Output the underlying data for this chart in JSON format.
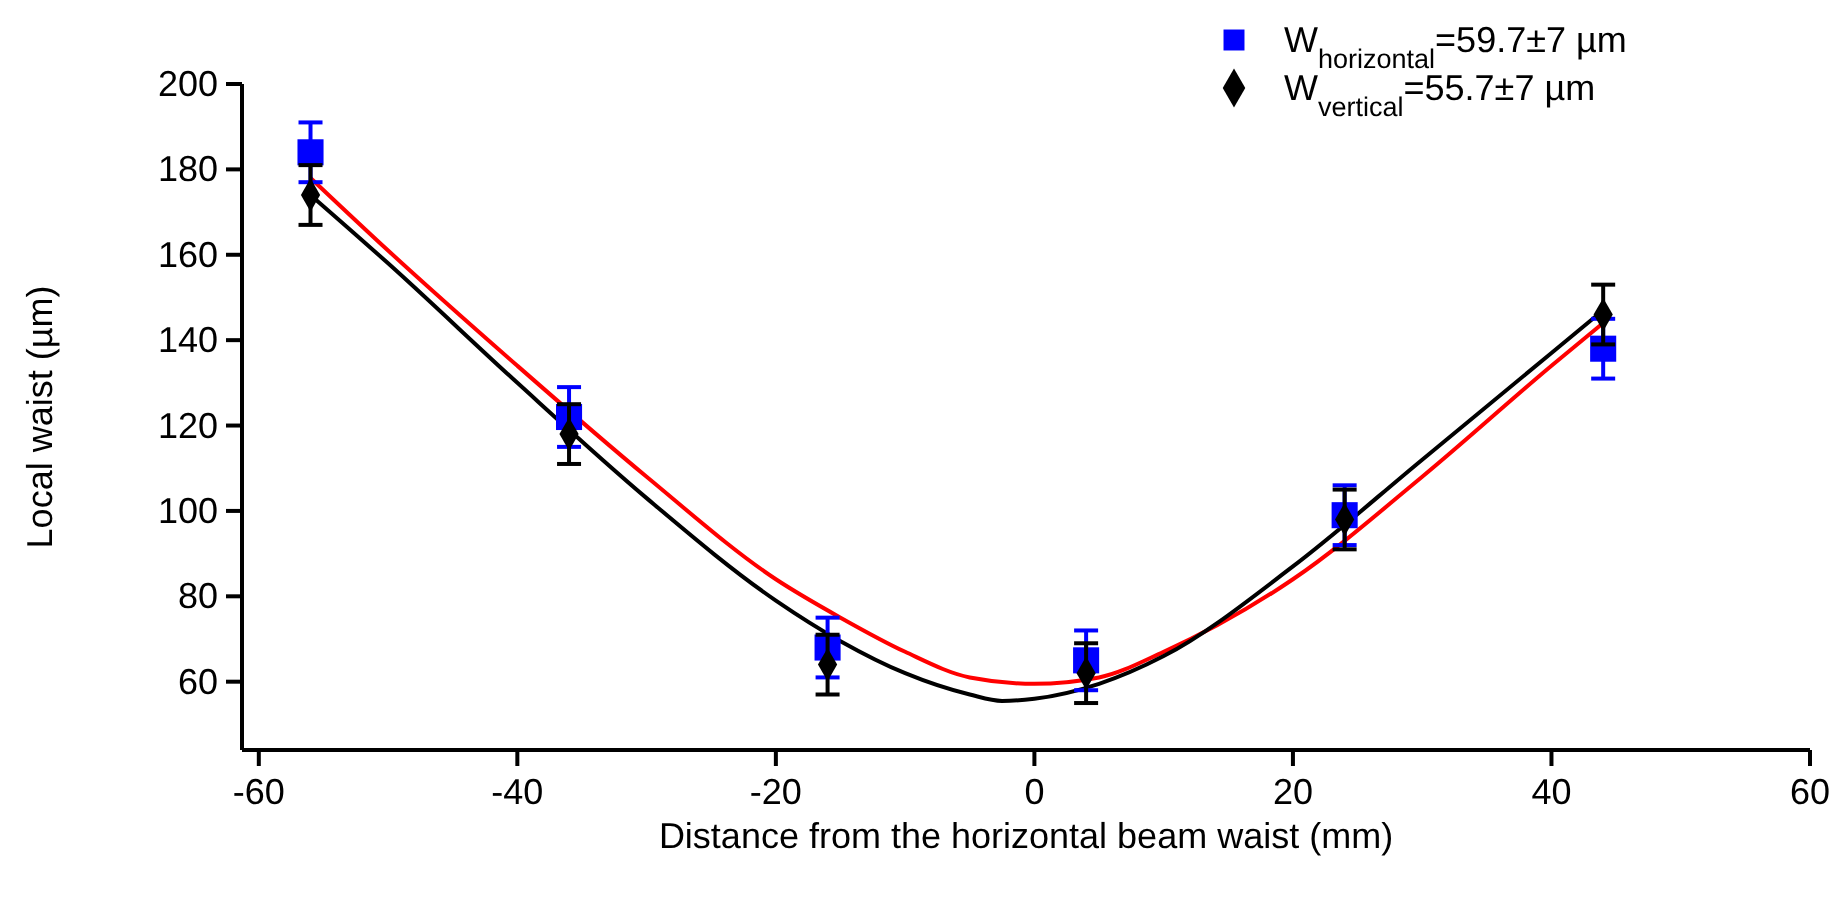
{
  "chart_data": {
    "type": "scatter",
    "xlabel": "Distance from the horizontal beam waist (mm)",
    "ylabel": "Local waist (µm)",
    "xlim": [
      -61.3,
      60
    ],
    "ylim": [
      44,
      200
    ],
    "xticks": [
      -60,
      -40,
      -20,
      0,
      20,
      40,
      60
    ],
    "yticks": [
      60,
      80,
      100,
      120,
      140,
      160,
      180,
      200
    ],
    "grid": false,
    "legend": "top right",
    "series": [
      {
        "name": "W$_{horizontal}$=59.7±7 µm",
        "color": "#0000ff",
        "marker": "square",
        "x": [
          -56,
          -36,
          -16,
          4,
          24,
          44
        ],
        "values": [
          184,
          122,
          68,
          65,
          99,
          138
        ],
        "errors": [
          7,
          7,
          7,
          7,
          7,
          7
        ]
      },
      {
        "name": "W$_{vertical}$=55.7±7 µm",
        "color": "#000000",
        "marker": "diamond",
        "x": [
          -56,
          -36,
          -16,
          4,
          24,
          44
        ],
        "values": [
          174,
          118,
          64,
          62,
          98,
          146
        ],
        "errors": [
          7,
          7,
          7,
          7,
          7,
          7
        ]
      },
      {
        "type": "line",
        "color": "#ff0000",
        "marker": "none",
        "x": [
          -56,
          -50,
          -40,
          -30,
          -20,
          -15,
          -10,
          -5,
          0,
          5,
          10,
          20,
          30,
          40,
          44
        ],
        "values": [
          178,
          161,
          134,
          108,
          84,
          75,
          67,
          61,
          59.5,
          61,
          67,
          84,
          108,
          134,
          144
        ]
      },
      {
        "type": "line",
        "color": "#000000",
        "marker": "none",
        "x": [
          -56,
          -50,
          -40,
          -30,
          -20,
          -15,
          -10,
          -5,
          -2.5,
          0,
          5,
          10,
          20,
          30,
          40,
          44
        ],
        "values": [
          174,
          158,
          130,
          103,
          79,
          69.5,
          62,
          57,
          55.5,
          56,
          59.5,
          66,
          87,
          112,
          137,
          147
        ]
      }
    ]
  }
}
